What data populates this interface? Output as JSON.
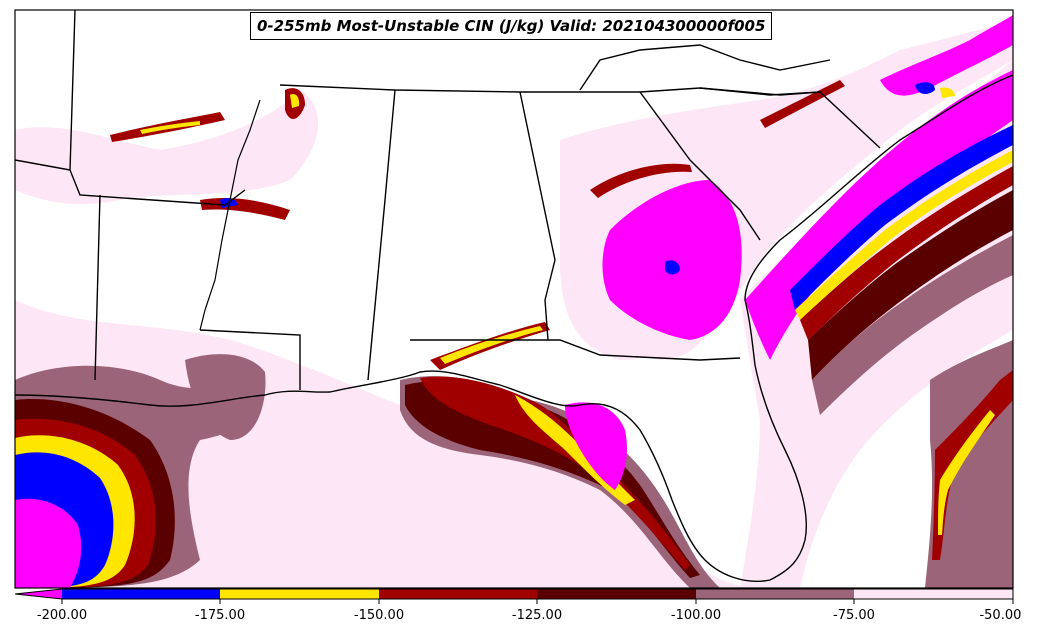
{
  "title": "0-255mb Most-Unstable CIN (J/kg) Valid: 202104300000f005",
  "colorbar": {
    "extend": "min",
    "under_color": "#ff00ff",
    "ticks": [
      "-200.00",
      "-175.00",
      "-150.00",
      "-125.00",
      "-100.00",
      "-75.00",
      "-50.00"
    ],
    "bins": [
      {
        "range": [
          -200,
          -175
        ],
        "color": "#0000ff"
      },
      {
        "range": [
          -175,
          -150
        ],
        "color": "#ffe600"
      },
      {
        "range": [
          -150,
          -125
        ],
        "color": "#a00000"
      },
      {
        "range": [
          -125,
          -100
        ],
        "color": "#5a0000"
      },
      {
        "range": [
          -100,
          -75
        ],
        "color": "#9b6478"
      },
      {
        "range": [
          -75,
          -50
        ],
        "color": "#fde6f6"
      }
    ]
  },
  "colors": {
    "lt_pink": "#fde6f6",
    "mauve": "#9b6478",
    "dark_red": "#5a0000",
    "red": "#a00000",
    "yellow": "#ffe600",
    "blue": "#0000ff",
    "magenta": "#ff00ff",
    "border": "#000000",
    "background": "#ffffff"
  }
}
